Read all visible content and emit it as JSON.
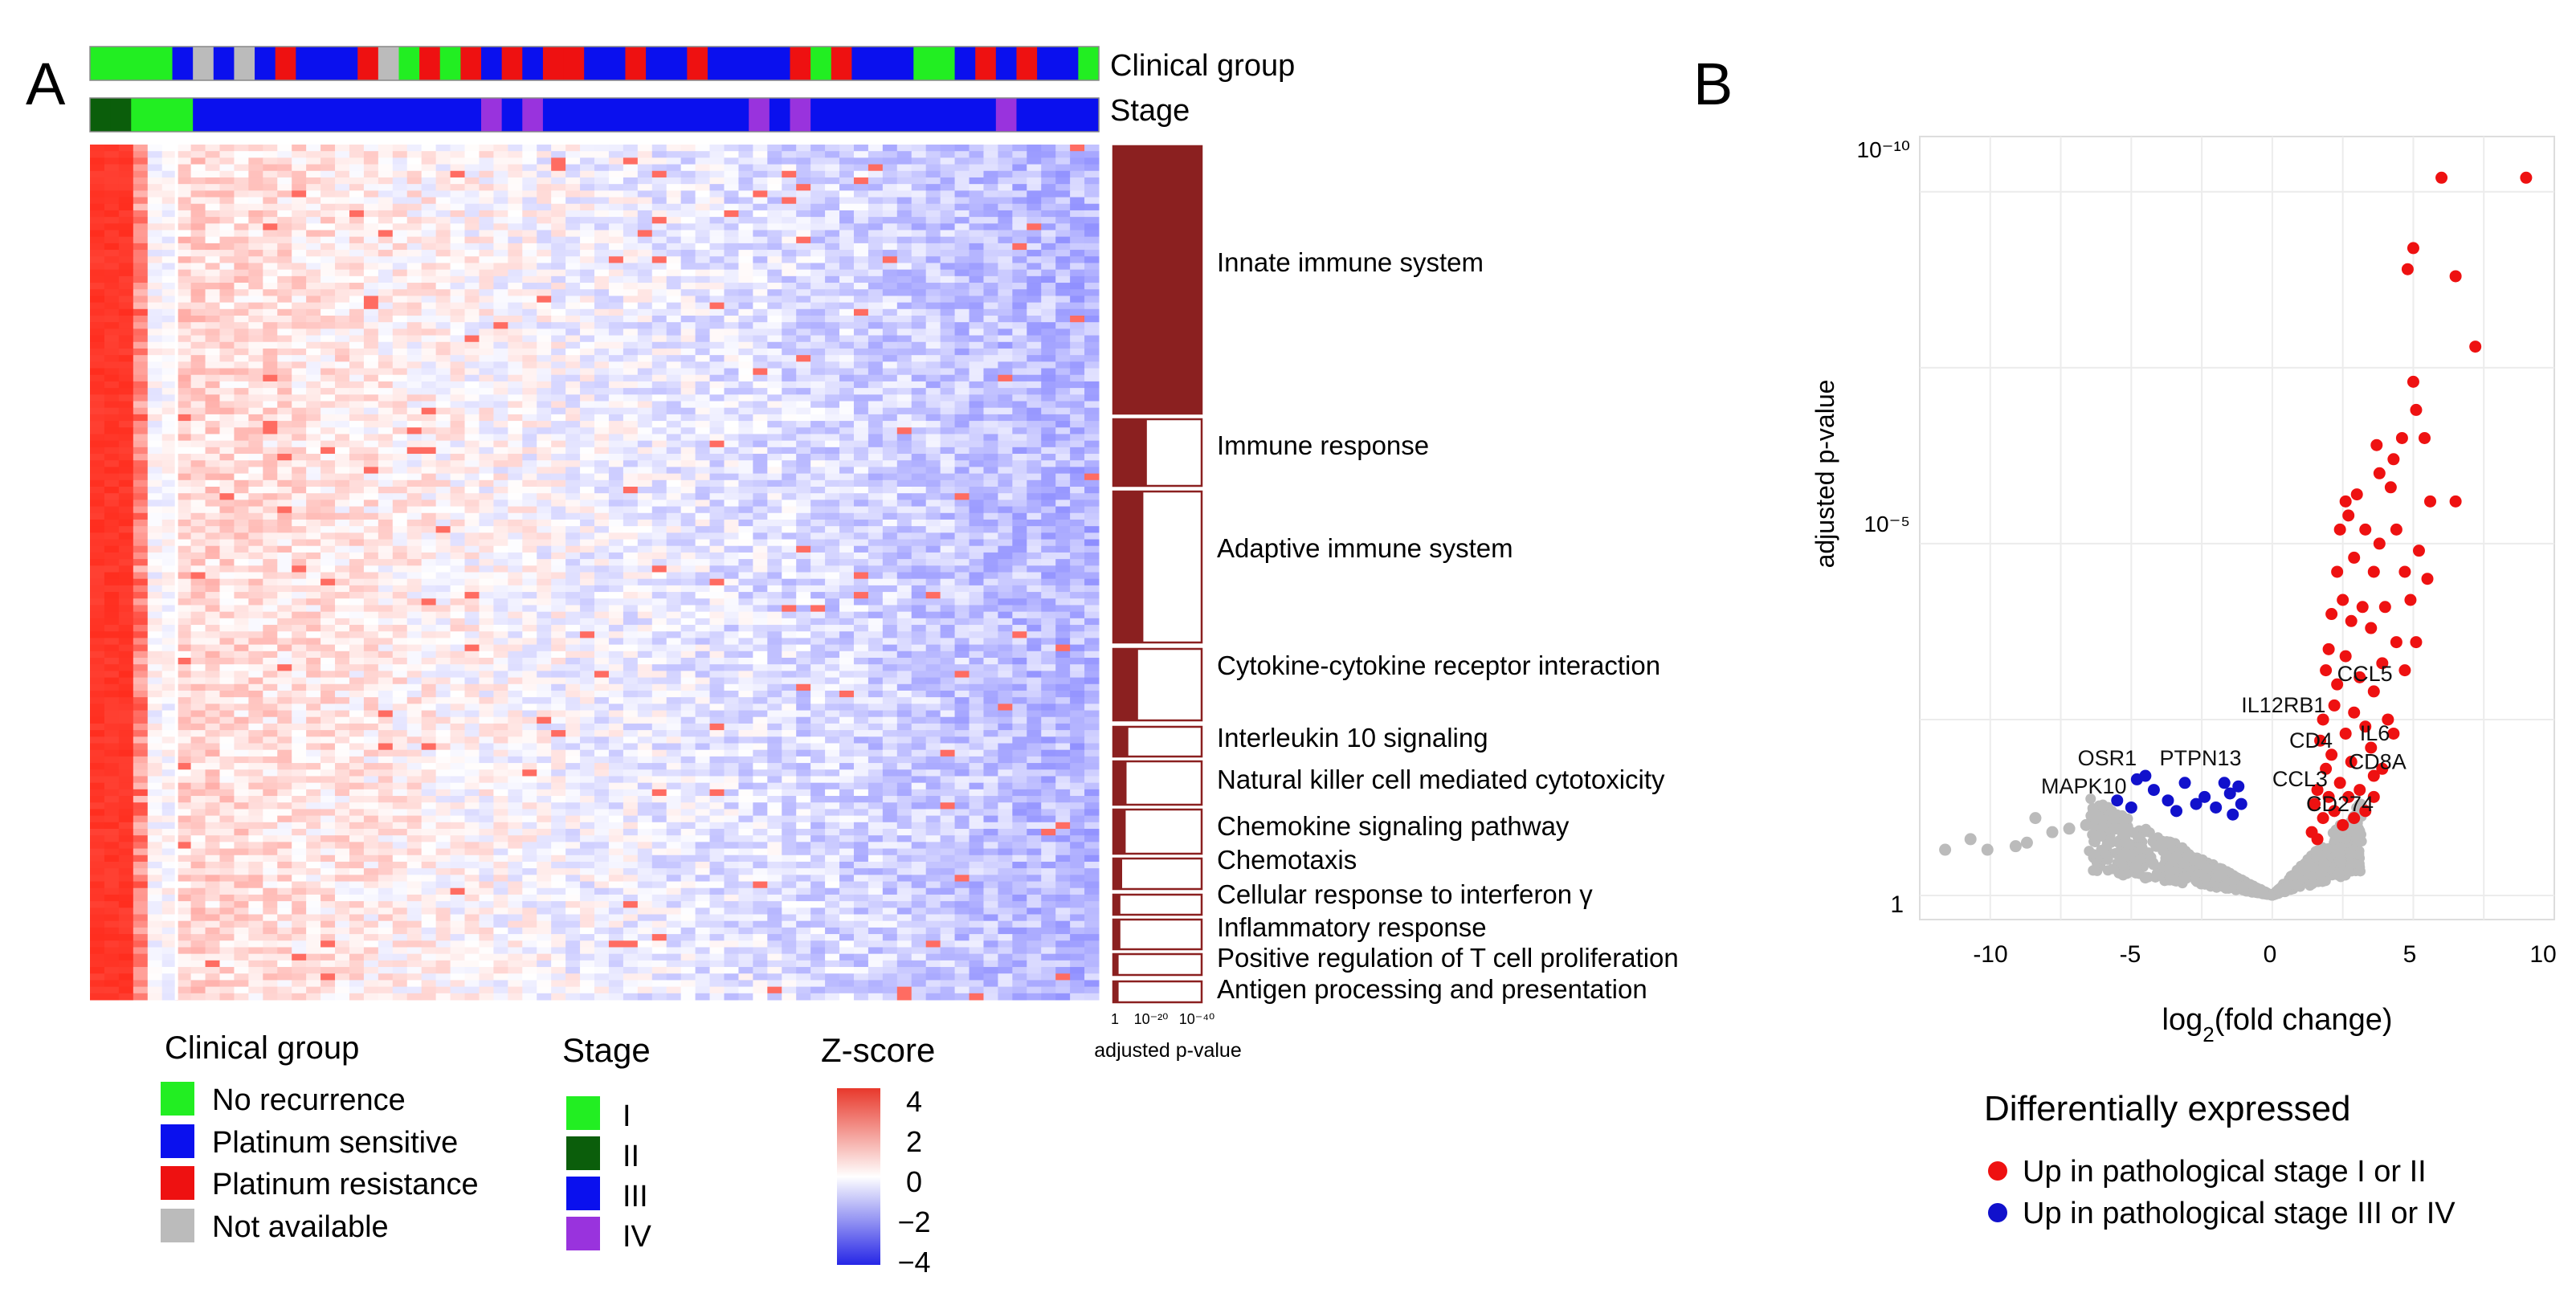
{
  "panel_a": {
    "label": "A",
    "track_labels": [
      "Clinical group",
      "Stage"
    ],
    "pathways": [
      {
        "name": "Innate immune system",
        "frac": 1.0
      },
      {
        "name": "Immune response",
        "frac": 0.38
      },
      {
        "name": "Adaptive immune system",
        "frac": 0.34
      },
      {
        "name": "Cytokine-cytokine receptor interaction",
        "frac": 0.28
      },
      {
        "name": "Interleukin 10 signaling",
        "frac": 0.17
      },
      {
        "name": "Natural killer cell mediated cytotoxicity",
        "frac": 0.15
      },
      {
        "name": "Chemokine signaling pathway",
        "frac": 0.14
      },
      {
        "name": "Chemotaxis",
        "frac": 0.1
      },
      {
        "name": "Cellular response to interferon γ",
        "frac": 0.08
      },
      {
        "name": "Inflammatory response",
        "frac": 0.08
      },
      {
        "name": "Positive regulation of T cell proliferation",
        "frac": 0.06
      },
      {
        "name": "Antigen processing and presentation",
        "frac": 0.06
      }
    ],
    "pathway_axis": {
      "ticks": [
        "1",
        "10⁻²⁰",
        "10⁻⁴⁰"
      ],
      "label": "adjusted p-value"
    },
    "legends": {
      "clinical": {
        "title": "Clinical group",
        "items": [
          {
            "label": "No recurrence",
            "color": "#22ee22"
          },
          {
            "label": "Platinum sensitive",
            "color": "#0a10ee"
          },
          {
            "label": "Platinum resistance",
            "color": "#ee1111"
          },
          {
            "label": "Not available",
            "color": "#bbbbbb"
          }
        ]
      },
      "stage": {
        "title": "Stage",
        "items": [
          {
            "label": "I",
            "color": "#22ee22"
          },
          {
            "label": "II",
            "color": "#0b5e0b"
          },
          {
            "label": "III",
            "color": "#0a10ee"
          },
          {
            "label": "IV",
            "color": "#9933dd"
          }
        ]
      },
      "zscore": {
        "title": "Z-score",
        "ticks": [
          "4",
          "2",
          "0",
          "−2",
          "−4"
        ]
      }
    }
  },
  "panel_b": {
    "label": "B",
    "legend": {
      "title": "Differentially expressed",
      "items": [
        {
          "label": "Up in pathological stage I or II",
          "color": "#ee1111"
        },
        {
          "label": "Up in pathological stage III or IV",
          "color": "#1111cc"
        }
      ]
    }
  },
  "chart_data": {
    "type": "scatter",
    "xlabel": "log2(fold change)",
    "ylabel": "adjusted p-value",
    "xlim": [
      -12.5,
      10
    ],
    "ylim_log10_pvalue": [
      0,
      -10.5
    ],
    "log_scale_y": true,
    "x_ticks": [
      -10,
      -5,
      0,
      5,
      10
    ],
    "y_ticks": [
      "1",
      "10⁻⁵",
      "10⁻¹⁰"
    ],
    "grid": true,
    "legend_placement": "bottom",
    "series": [
      {
        "name": "Up in pathological stage I or II",
        "color": "#ee1111",
        "points": [
          [
            6,
            10.2
          ],
          [
            9,
            10.2
          ],
          [
            5,
            9.2
          ],
          [
            4.8,
            8.9
          ],
          [
            6.5,
            8.8
          ],
          [
            7.2,
            7.8
          ],
          [
            5,
            7.3
          ],
          [
            5.1,
            6.9
          ],
          [
            5.4,
            6.5
          ],
          [
            4.6,
            6.5
          ],
          [
            3.7,
            6.4
          ],
          [
            4.3,
            6.2
          ],
          [
            3.8,
            6
          ],
          [
            4.2,
            5.8
          ],
          [
            5.6,
            5.6
          ],
          [
            6.5,
            5.6
          ],
          [
            2.6,
            5.6
          ],
          [
            3,
            5.7
          ],
          [
            2.7,
            5.4
          ],
          [
            3.3,
            5.2
          ],
          [
            2.4,
            5.2
          ],
          [
            3.8,
            5
          ],
          [
            4.4,
            5.2
          ],
          [
            5.2,
            4.9
          ],
          [
            2.9,
            4.8
          ],
          [
            2.3,
            4.6
          ],
          [
            3.6,
            4.6
          ],
          [
            4.7,
            4.6
          ],
          [
            5.5,
            4.5
          ],
          [
            2.5,
            4.2
          ],
          [
            3.2,
            4.1
          ],
          [
            4,
            4.1
          ],
          [
            4.9,
            4.2
          ],
          [
            2.1,
            4
          ],
          [
            2.8,
            3.9
          ],
          [
            3.5,
            3.8
          ],
          [
            5.1,
            3.6
          ],
          [
            4.4,
            3.6
          ],
          [
            2,
            3.5
          ],
          [
            2.6,
            3.4
          ],
          [
            3.9,
            3.3
          ],
          [
            1.9,
            3.2
          ],
          [
            3.1,
            3.1
          ],
          [
            4.7,
            3.2
          ],
          [
            2.3,
            3
          ],
          [
            3.6,
            2.9
          ],
          [
            2.2,
            2.7
          ],
          [
            2.9,
            2.6
          ],
          [
            1.8,
            2.5
          ],
          [
            3.3,
            2.4
          ],
          [
            4.1,
            2.5
          ],
          [
            2.6,
            2.3
          ],
          [
            1.7,
            2.2
          ],
          [
            3.5,
            2.1
          ],
          [
            2.1,
            2
          ],
          [
            2.8,
            1.9
          ],
          [
            1.9,
            1.8
          ],
          [
            3.6,
            1.7
          ],
          [
            2.4,
            1.6
          ],
          [
            1.6,
            1.5
          ],
          [
            3.1,
            1.5
          ],
          [
            2.7,
            1.4
          ],
          [
            1.5,
            1.3
          ],
          [
            2.2,
            1.2
          ],
          [
            3.3,
            1.2
          ],
          [
            1.8,
            1.1
          ],
          [
            2.5,
            1
          ],
          [
            1.4,
            0.9
          ],
          [
            3.9,
            1.8
          ],
          [
            4.3,
            2.3
          ],
          [
            2,
            1.4
          ],
          [
            2.9,
            1.1
          ],
          [
            1.6,
            0.8
          ],
          [
            3.6,
            1.4
          ]
        ]
      },
      {
        "name": "Up in pathological stage III or IV",
        "color": "#1111cc",
        "points": [
          [
            -5.5,
            1.35
          ],
          [
            -5,
            1.25
          ],
          [
            -4.8,
            1.65
          ],
          [
            -4.5,
            1.7
          ],
          [
            -4.2,
            1.5
          ],
          [
            -3.7,
            1.35
          ],
          [
            -3.4,
            1.2
          ],
          [
            -3.1,
            1.6
          ],
          [
            -2.7,
            1.3
          ],
          [
            -2.4,
            1.4
          ],
          [
            -2,
            1.25
          ],
          [
            -1.7,
            1.6
          ],
          [
            -1.5,
            1.45
          ],
          [
            -1.4,
            1.15
          ],
          [
            -1.2,
            1.55
          ],
          [
            -1.1,
            1.3
          ]
        ]
      },
      {
        "name": "",
        "color": "#bbbbbb",
        "points": [
          [
            -11.6,
            0.65
          ],
          [
            -10.7,
            0.8
          ],
          [
            -10.1,
            0.65
          ],
          [
            -9.1,
            0.7
          ],
          [
            -8.7,
            0.75
          ],
          [
            -8.4,
            1.1
          ],
          [
            -7.8,
            0.9
          ],
          [
            -7.2,
            0.95
          ],
          [
            -6.6,
            1
          ],
          [
            -6.1,
            0.85
          ],
          [
            -5.6,
            0.95
          ]
        ]
      }
    ],
    "annotations": [
      {
        "text": "CCL5",
        "x": 2.3,
        "y": 3.05
      },
      {
        "text": "IL12RB1",
        "x": -1.1,
        "y": 2.6
      },
      {
        "text": "CD4",
        "x": 0.6,
        "y": 2.1
      },
      {
        "text": "IL6",
        "x": 3.1,
        "y": 2.2
      },
      {
        "text": "CD8A",
        "x": 2.7,
        "y": 1.8
      },
      {
        "text": "CCL3",
        "x": 0.0,
        "y": 1.55
      },
      {
        "text": "CD274",
        "x": 1.2,
        "y": 1.2
      },
      {
        "text": "OSR1",
        "x": -6.9,
        "y": 1.85
      },
      {
        "text": "PTPN13",
        "x": -4.0,
        "y": 1.85
      },
      {
        "text": "MAPK10",
        "x": -8.2,
        "y": 1.45
      }
    ]
  }
}
